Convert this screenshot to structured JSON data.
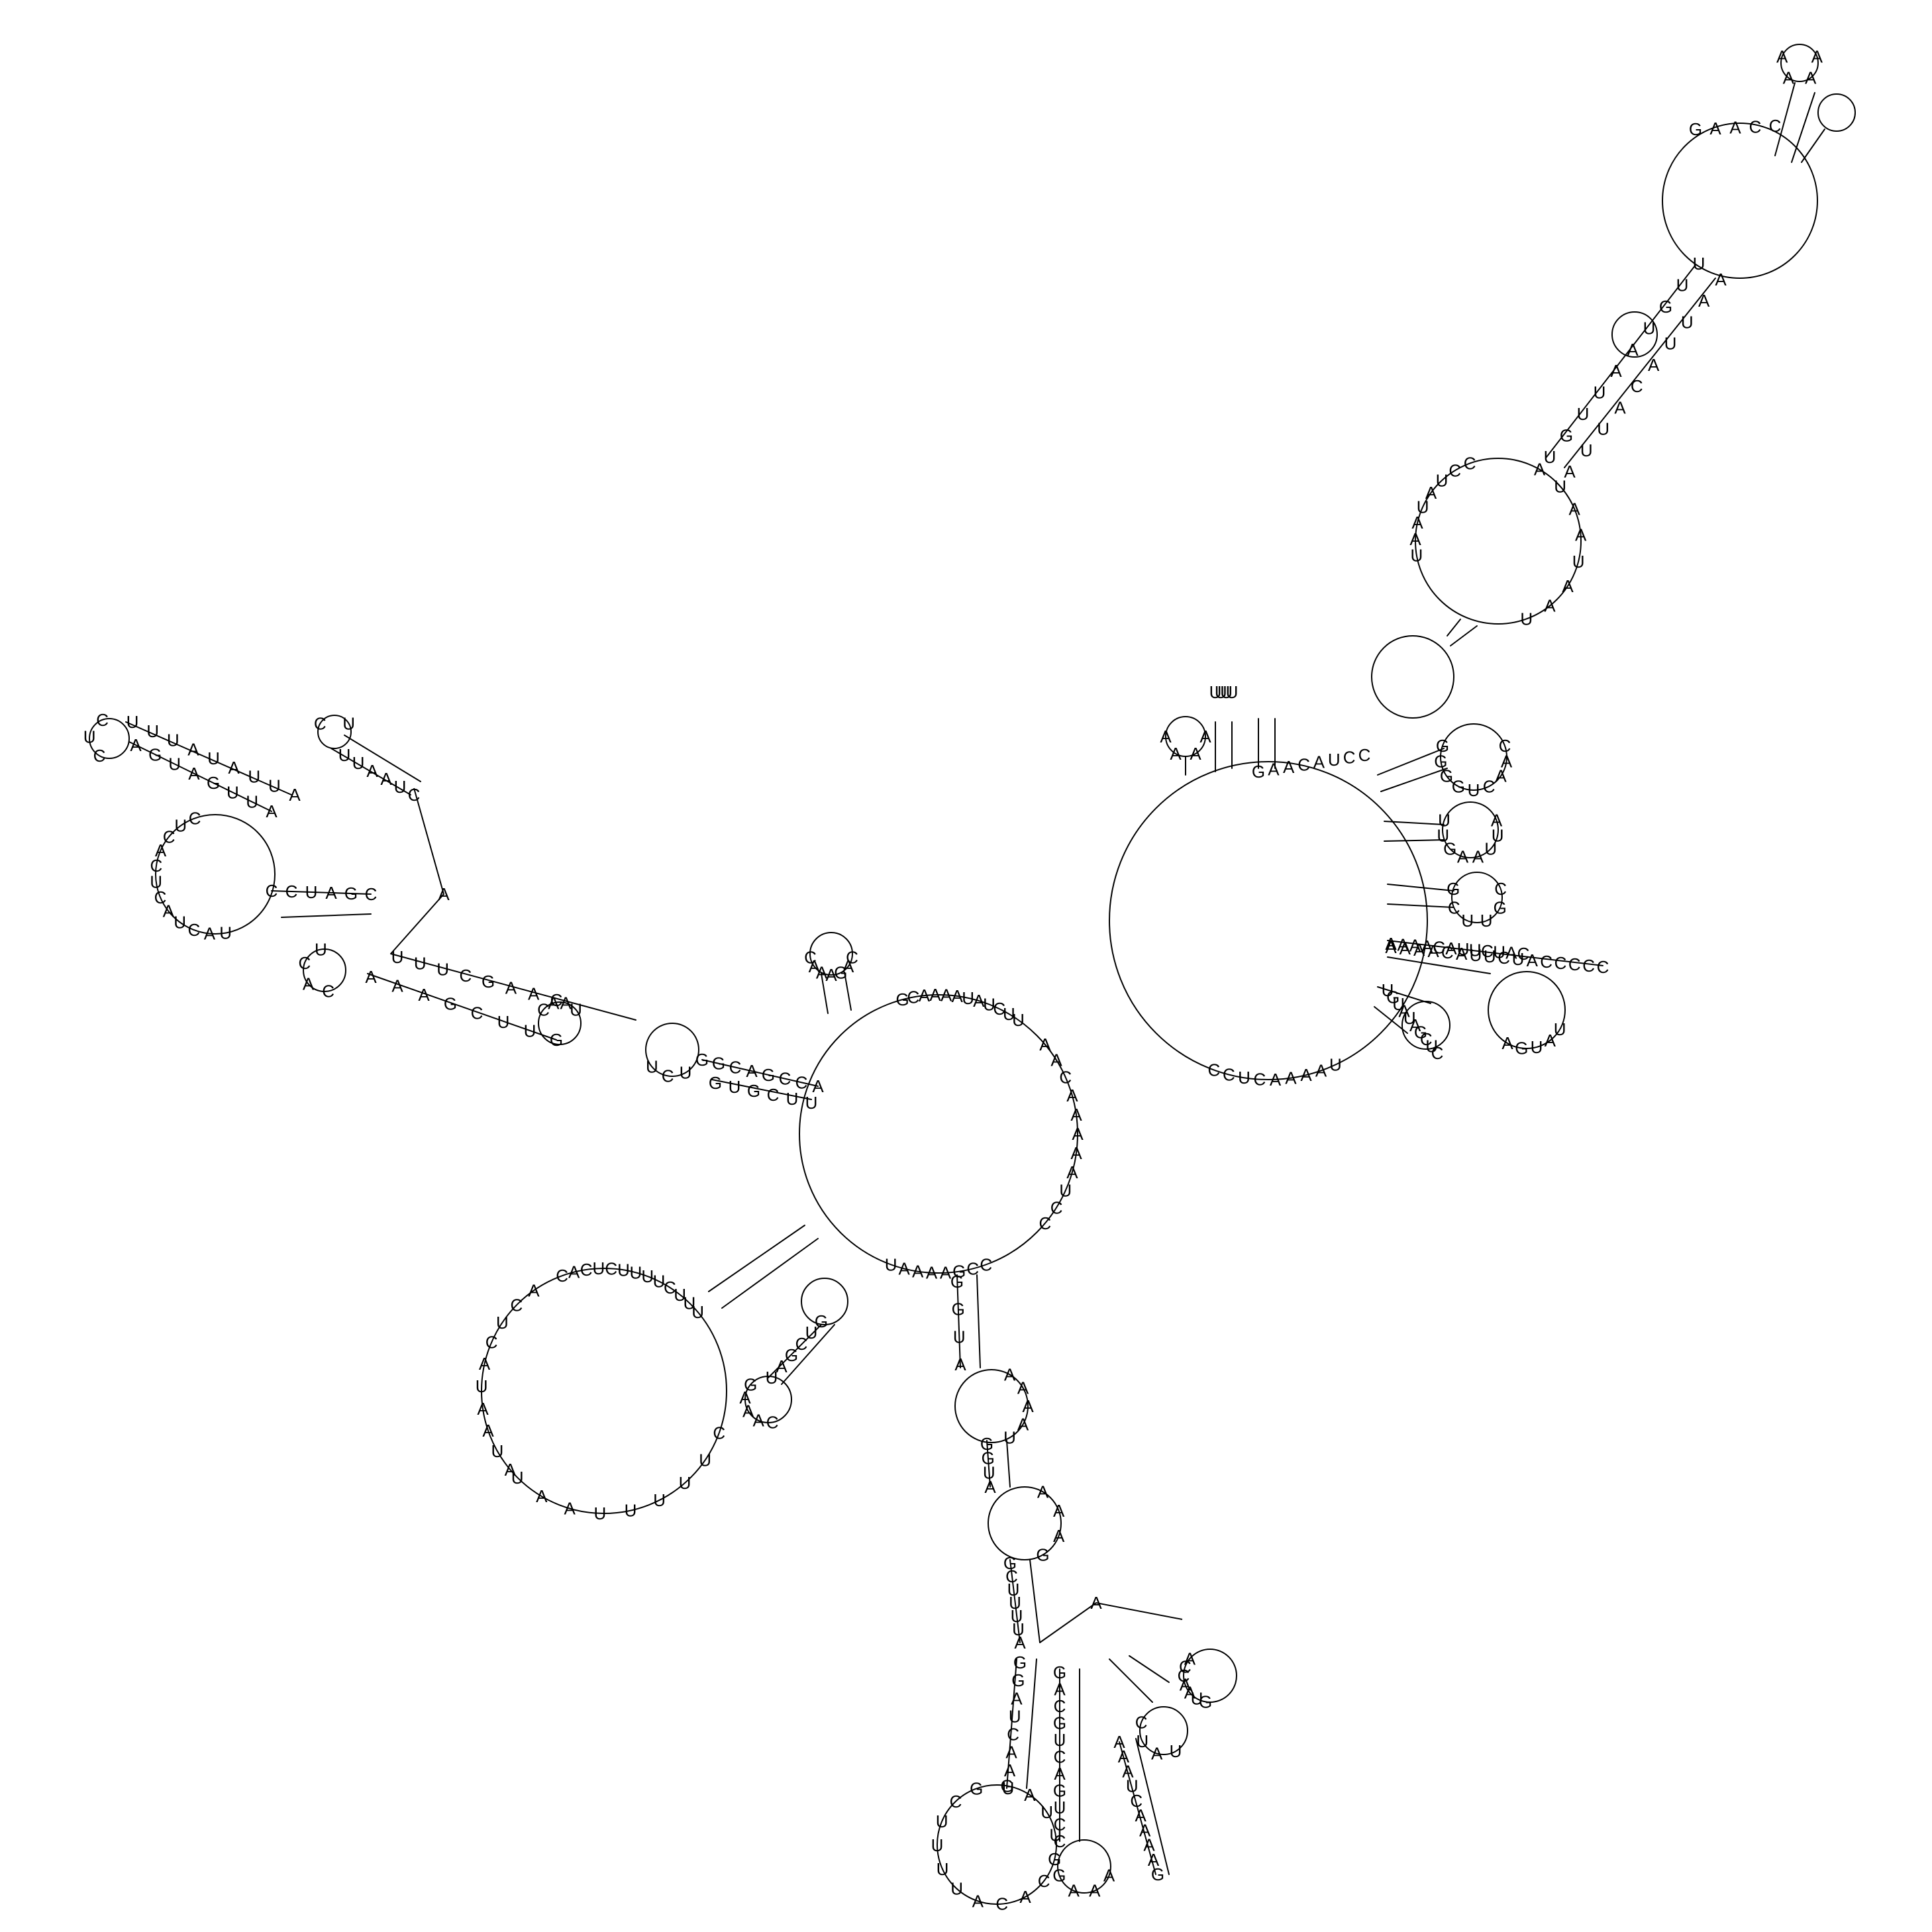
{
  "structure": {
    "type": "rna-secondary-structure",
    "backbone_color": "#000000",
    "label_color": "#000000"
  },
  "labels": {
    "apex-tetraloop": "AAAA",
    "top-arm-loop": "GAACC",
    "top-arm-stem-left": "UGUUAAUGUU",
    "top-arm-stem-right": "AUUACAUUAA",
    "top-arm-big-loop-left": "CCUAUAAU",
    "top-arm-big-loop-right": "AUAAUAAU",
    "upper-right-hub-outer": "CCUCAAAAU",
    "upper-right-hub-top": "GAACAUCC",
    "upper-right-hairpin-a": "AAAA",
    "upper-right-hairpin-b": "UUUU",
    "upper-right-stack-1": "GGGGUCAAC",
    "upper-right-stack-2": "UUGAAUUA",
    "upper-right-stack-3": "GCUUGC",
    "upper-right-stack-4": "AAAACAUUCUAC",
    "upper-right-stack-5": "UGUAUAGCUC",
    "upper-right-hairpin-long": "AAAACAUUCUACCCCC",
    "upper-right-loop-bottom": "AGUAU",
    "center-multiloop-top": "GCAAAAUAUCUU",
    "center-multiloop-right": "AACAAAAAUCC",
    "center-multiloop-bottom": "UAAAAGCC",
    "center-hairpin-top": "CAAAGAC",
    "center-left-stem-upper": "GGCAGCCA",
    "center-left-stem-lower": "GUGCUU",
    "left-long-stem-upper": "UUUCGAAC",
    "left-long-stem-lower": "AAAGCUUG",
    "left-linker-loop": "UCU",
    "left-interior-loop": "CAAU",
    "left-far-hairpin": "CUC",
    "left-far-stem-upper": "UUUAUAUUA",
    "left-far-stem-lower": "AGUAGUUA",
    "left-far-big-loop": "CUCACUCAUCAU",
    "left-upper-hairpin": "CU",
    "left-upper-stem": "UUAAUC",
    "left-mid-stack": "CCUAGC",
    "left-small-hairpin": "UCAC",
    "left-lone-nt": "A",
    "lower-left-loop-top": "CACUCUUUUCUUU",
    "lower-left-loop-left": "ACUCAUAAUA",
    "lower-left-loop-bottom": "UAAUUUUUC",
    "lower-left-hairpin": "CAAAG",
    "lower-left-stem": "UAGCUG",
    "bottom-stem-1": "GGUA",
    "bottom-interior-1": "AAAAU",
    "bottom-stem-2": "GGUA",
    "bottom-interior-2": "AAAG",
    "bottom-stem-3": "GCUUUUA",
    "bottom-lone-nt": "A",
    "bottom-hairpin-right": "ACCAAUG",
    "bottom-loop-small": "UAUC",
    "bottom-big-loop": "GAUUGCACAUUUUCG",
    "bottom-stem-left": "GGAUCAAU",
    "bottom-stem-mid": "GACGUCAGUCC",
    "bottom-stem-right": "AAAUCAAAAG",
    "bottom-hairpin-bottom": "GAAA"
  }
}
